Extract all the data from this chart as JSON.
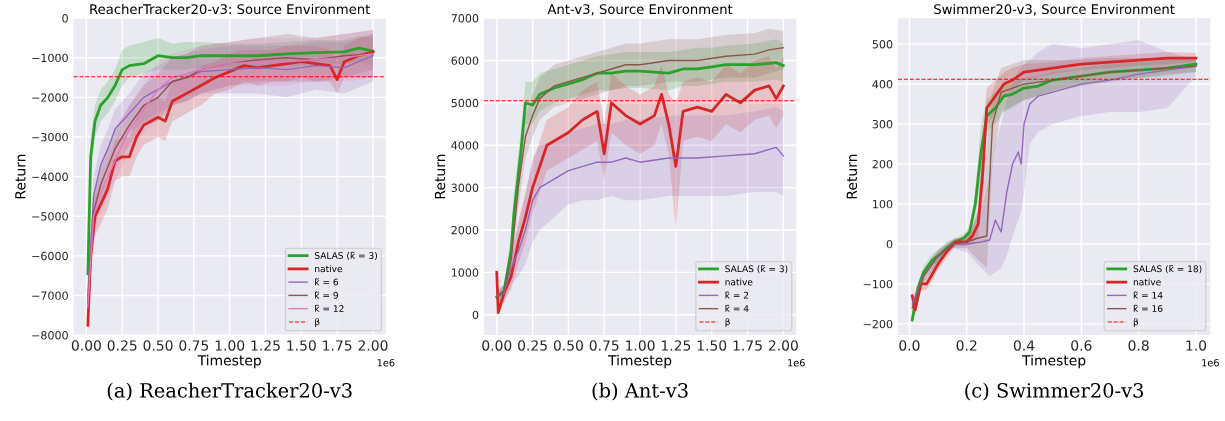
{
  "chart_data": [
    {
      "type": "line",
      "title": "ReacherTracker20-v3: Source Environment",
      "xlabel": "Timestep",
      "ylabel": "Return",
      "annotations": [
        "1e6",
        "(a) ReacherTracker20-v3"
      ],
      "xlim": [
        -0.09,
        2.09
      ],
      "ylim": [
        -8000,
        0
      ],
      "xticks": [
        {
          "value": 0,
          "label": "0.00"
        },
        {
          "value": 0.25,
          "label": "0.25"
        },
        {
          "value": 0.5,
          "label": "0.50"
        },
        {
          "value": 0.75,
          "label": "0.75"
        },
        {
          "value": 1,
          "label": "1.00"
        },
        {
          "value": 1.25,
          "label": "1.25"
        },
        {
          "value": 1.5,
          "label": "1.50"
        },
        {
          "value": 1.75,
          "label": "1.75"
        },
        {
          "value": 2,
          "label": "2.00"
        }
      ],
      "yticks": [
        {
          "value": -8000,
          "label": "−8000"
        },
        {
          "value": -7000,
          "label": "−7000"
        },
        {
          "value": -6000,
          "label": "−6000"
        },
        {
          "value": -5000,
          "label": "−5000"
        },
        {
          "value": -4000,
          "label": "−4000"
        },
        {
          "value": -3000,
          "label": "−3000"
        },
        {
          "value": -2000,
          "label": "−2000"
        },
        {
          "value": -1000,
          "label": "−1000"
        },
        0
      ],
      "grid": true,
      "legend": "bottom right",
      "ref_lines": [
        {
          "axis": "y",
          "value": -1480,
          "label": "β",
          "color": "#ff0000",
          "line_style": "dashed"
        }
      ],
      "series": [
        {
          "name": "SALAS (k̃ = 3)",
          "color": "#2ca02c",
          "x": [
            0.01,
            0.03,
            0.06,
            0.1,
            0.15,
            0.2,
            0.25,
            0.3,
            0.4,
            0.5,
            0.6,
            0.7,
            0.8,
            1.0,
            1.2,
            1.4,
            1.6,
            1.8,
            1.9,
            2.0
          ],
          "values": [
            -6450,
            -3500,
            -2600,
            -2200,
            -2000,
            -1700,
            -1300,
            -1200,
            -1150,
            -950,
            -1000,
            -1000,
            -950,
            -950,
            -950,
            -900,
            -870,
            -850,
            -760,
            -830
          ],
          "lower": [
            -7000,
            -4000,
            -3000,
            -2600,
            -2400,
            -2100,
            -1700,
            -1500,
            -1400,
            -1300,
            -1300,
            -1300,
            -1250,
            -1250,
            -1300,
            -1200,
            -1200,
            -1150,
            -1100,
            -1200
          ],
          "upper": [
            -6000,
            -3000,
            -2200,
            -1800,
            -1600,
            -1300,
            -800,
            -700,
            -600,
            -500,
            -650,
            -600,
            -600,
            -650,
            -650,
            -600,
            -550,
            -550,
            -450,
            -500
          ]
        },
        {
          "name": "native",
          "color": "#d62728",
          "x": [
            0.01,
            0.03,
            0.06,
            0.1,
            0.15,
            0.2,
            0.25,
            0.3,
            0.35,
            0.4,
            0.5,
            0.55,
            0.6,
            0.7,
            0.8,
            0.9,
            1.0,
            1.1,
            1.2,
            1.3,
            1.4,
            1.5,
            1.6,
            1.7,
            1.75,
            1.8,
            1.9,
            2.0
          ],
          "values": [
            -7750,
            -6000,
            -5000,
            -4700,
            -4300,
            -3600,
            -3500,
            -3500,
            -3000,
            -2700,
            -2500,
            -2600,
            -2100,
            -1900,
            -1700,
            -1500,
            -1350,
            -1200,
            -1250,
            -1200,
            -1150,
            -1100,
            -1150,
            -1200,
            -1550,
            -1100,
            -950,
            -850
          ],
          "lower": [
            -8000,
            -6500,
            -5500,
            -5200,
            -4800,
            -4100,
            -4000,
            -4000,
            -3500,
            -3200,
            -3000,
            -3100,
            -2600,
            -2400,
            -2200,
            -1900,
            -1800,
            -1600,
            -1700,
            -1600,
            -1600,
            -1500,
            -1600,
            -1600,
            -1900,
            -1500,
            -1400,
            -1300
          ],
          "upper": [
            -7300,
            -5500,
            -4500,
            -4200,
            -3800,
            -3100,
            -3000,
            -3000,
            -2500,
            -2200,
            -2000,
            -2100,
            -1600,
            -1400,
            -1200,
            -1100,
            -900,
            -800,
            -800,
            -800,
            -700,
            -700,
            -700,
            -800,
            -1100,
            -700,
            -500,
            -400
          ]
        },
        {
          "name": "k̃ = 6",
          "color": "#9467bd",
          "x": [
            0.01,
            0.05,
            0.1,
            0.15,
            0.2,
            0.3,
            0.4,
            0.5,
            0.6,
            0.7,
            0.8,
            1.0,
            1.2,
            1.4,
            1.6,
            1.8,
            2.0
          ],
          "values": [
            -7000,
            -4500,
            -3700,
            -3300,
            -2800,
            -2400,
            -2000,
            -1800,
            -1600,
            -1500,
            -1350,
            -1300,
            -1250,
            -1300,
            -1200,
            -1250,
            -950
          ],
          "lower": [
            -7500,
            -5000,
            -4200,
            -3800,
            -3300,
            -2900,
            -2600,
            -2400,
            -2200,
            -2100,
            -1900,
            -1900,
            -1900,
            -2000,
            -1800,
            -1900,
            -1600
          ],
          "upper": [
            -6500,
            -4000,
            -3200,
            -2800,
            -2300,
            -1900,
            -1400,
            -1200,
            -1000,
            -900,
            -800,
            -700,
            -700,
            -700,
            -600,
            -600,
            -400
          ]
        },
        {
          "name": "k̃ = 9",
          "color": "#8c564b",
          "x": [
            0.01,
            0.05,
            0.1,
            0.2,
            0.3,
            0.4,
            0.5,
            0.6,
            0.7,
            0.8,
            1.0,
            1.2,
            1.4,
            1.6,
            1.8,
            2.0
          ],
          "values": [
            -7200,
            -4900,
            -4200,
            -3300,
            -2700,
            -2200,
            -2000,
            -1600,
            -1500,
            -1300,
            -1150,
            -1050,
            -1000,
            -1050,
            -950,
            -900
          ],
          "lower": [
            -7700,
            -5400,
            -4700,
            -3800,
            -3200,
            -2700,
            -2600,
            -2200,
            -2100,
            -1900,
            -1700,
            -1600,
            -1600,
            -1600,
            -1500,
            -1500
          ],
          "upper": [
            -6700,
            -4400,
            -3700,
            -2800,
            -2200,
            -1700,
            -1400,
            -1000,
            -900,
            -700,
            -600,
            -500,
            -400,
            -500,
            -400,
            -300
          ]
        },
        {
          "name": "k̃ = 12",
          "color": "#e377c2",
          "x": [
            0.01,
            0.05,
            0.1,
            0.2,
            0.3,
            0.4,
            0.5,
            0.6,
            0.7,
            0.8,
            1.0,
            1.2,
            1.4,
            1.6,
            1.8,
            2.0
          ],
          "values": [
            -7300,
            -5000,
            -4400,
            -3600,
            -2800,
            -2300,
            -1800,
            -1500,
            -1400,
            -1300,
            -1150,
            -1100,
            -1100,
            -1050,
            -1000,
            -900
          ],
          "lower": [
            -7800,
            -5500,
            -4900,
            -4100,
            -3400,
            -2900,
            -2500,
            -2200,
            -2000,
            -1900,
            -1700,
            -1700,
            -1700,
            -1600,
            -1600,
            -1500
          ],
          "upper": [
            -6800,
            -4500,
            -3900,
            -3100,
            -2200,
            -1700,
            -1100,
            -900,
            -800,
            -700,
            -600,
            -500,
            -500,
            -500,
            -400,
            -300
          ]
        }
      ]
    },
    {
      "type": "line",
      "title": "Ant-v3, Source Environment",
      "xlabel": "Timestep",
      "ylabel": "Return",
      "annotations": [
        "1e6",
        "(b) Ant-v3"
      ],
      "xlim": [
        -0.09,
        2.09
      ],
      "ylim": [
        -480,
        7000
      ],
      "xticks": [
        {
          "value": 0,
          "label": "0.00"
        },
        {
          "value": 0.25,
          "label": "0.25"
        },
        {
          "value": 0.5,
          "label": "0.50"
        },
        {
          "value": 0.75,
          "label": "0.75"
        },
        {
          "value": 1,
          "label": "1.00"
        },
        {
          "value": 1.25,
          "label": "1.25"
        },
        {
          "value": 1.5,
          "label": "1.50"
        },
        {
          "value": 1.75,
          "label": "1.75"
        },
        {
          "value": 2,
          "label": "2.00"
        }
      ],
      "yticks": [
        0,
        1000,
        2000,
        3000,
        4000,
        5000,
        6000,
        7000
      ],
      "grid": true,
      "legend": "bottom right",
      "ref_lines": [
        {
          "axis": "y",
          "value": 5050,
          "label": "β",
          "color": "#ff0000",
          "line_style": "dashed"
        }
      ],
      "series": [
        {
          "name": "SALAS (k̃ = 3)",
          "color": "#2ca02c",
          "x": [
            0.0,
            0.05,
            0.1,
            0.12,
            0.15,
            0.17,
            0.2,
            0.25,
            0.3,
            0.4,
            0.5,
            0.6,
            0.7,
            0.8,
            0.9,
            1.0,
            1.2,
            1.3,
            1.4,
            1.5,
            1.6,
            1.8,
            1.95,
            2.0
          ],
          "values": [
            420,
            550,
            1500,
            2400,
            3300,
            3900,
            5000,
            4950,
            5200,
            5350,
            5450,
            5550,
            5700,
            5700,
            5750,
            5750,
            5700,
            5800,
            5800,
            5850,
            5900,
            5900,
            5950,
            5880
          ],
          "lower": [
            300,
            400,
            1100,
            1900,
            2800,
            3400,
            4500,
            4500,
            4800,
            5000,
            5100,
            5200,
            5300,
            5300,
            5350,
            5350,
            5300,
            5400,
            5400,
            5450,
            5500,
            5500,
            5550,
            5500
          ],
          "upper": [
            550,
            700,
            1900,
            2900,
            3800,
            4400,
            5500,
            5500,
            5700,
            5800,
            5900,
            6000,
            6100,
            6150,
            6200,
            6200,
            6200,
            6250,
            6300,
            6300,
            6350,
            6400,
            6500,
            6400
          ]
        },
        {
          "name": "native",
          "color": "#d62728",
          "x": [
            0.0,
            0.01,
            0.05,
            0.1,
            0.15,
            0.2,
            0.25,
            0.3,
            0.35,
            0.4,
            0.5,
            0.6,
            0.7,
            0.75,
            0.8,
            0.9,
            1.0,
            1.1,
            1.15,
            1.2,
            1.25,
            1.3,
            1.4,
            1.5,
            1.6,
            1.7,
            1.8,
            1.9,
            1.95,
            2.0
          ],
          "values": [
            1000,
            50,
            500,
            900,
            1700,
            2300,
            3000,
            3500,
            4000,
            4100,
            4300,
            4600,
            4800,
            3800,
            5000,
            4700,
            4500,
            4700,
            5200,
            4500,
            3500,
            4800,
            4900,
            4800,
            5200,
            5000,
            5300,
            5400,
            5100,
            5400
          ],
          "lower": [
            700,
            0,
            300,
            600,
            1200,
            1700,
            2400,
            2900,
            3400,
            3500,
            3700,
            3900,
            4100,
            3200,
            4300,
            4000,
            3800,
            4000,
            4500,
            3800,
            2000,
            4100,
            4200,
            4100,
            4500,
            4300,
            4600,
            4700,
            4400,
            4700
          ],
          "upper": [
            1100,
            200,
            700,
            1200,
            2200,
            2900,
            3600,
            4100,
            4600,
            4700,
            4900,
            5300,
            5500,
            4500,
            5700,
            5400,
            5200,
            5400,
            5900,
            5200,
            5000,
            5500,
            5600,
            5500,
            5900,
            5700,
            6000,
            6100,
            5800,
            6100
          ]
        },
        {
          "name": "k̃ = 2",
          "color": "#9467bd",
          "x": [
            0.0,
            0.05,
            0.1,
            0.15,
            0.2,
            0.25,
            0.3,
            0.4,
            0.5,
            0.6,
            0.7,
            0.8,
            0.9,
            1.0,
            1.2,
            1.4,
            1.6,
            1.8,
            1.95,
            2.0
          ],
          "values": [
            450,
            500,
            1100,
            1500,
            2000,
            2700,
            3000,
            3200,
            3400,
            3500,
            3600,
            3600,
            3700,
            3600,
            3700,
            3700,
            3750,
            3800,
            3950,
            3750
          ],
          "lower": [
            300,
            300,
            700,
            900,
            1200,
            1700,
            2000,
            2300,
            2600,
            2700,
            2700,
            2800,
            2700,
            2700,
            2800,
            2800,
            2800,
            2900,
            2900,
            2800
          ],
          "upper": [
            600,
            700,
            1500,
            2100,
            2800,
            3700,
            4000,
            4100,
            4300,
            4400,
            4500,
            4500,
            4600,
            4600,
            4700,
            4700,
            4700,
            4800,
            4900,
            4800
          ]
        },
        {
          "name": "k̃ = 4",
          "color": "#8c564b",
          "x": [
            0.0,
            0.05,
            0.1,
            0.15,
            0.2,
            0.25,
            0.3,
            0.4,
            0.5,
            0.6,
            0.7,
            0.8,
            0.9,
            1.0,
            1.2,
            1.4,
            1.6,
            1.8,
            1.9,
            2.0
          ],
          "values": [
            400,
            550,
            1300,
            3000,
            4200,
            4700,
            5100,
            5400,
            5500,
            5600,
            5700,
            5800,
            5900,
            5900,
            6000,
            6000,
            6100,
            6150,
            6250,
            6300
          ],
          "lower": [
            300,
            400,
            900,
            2500,
            3700,
            4200,
            4600,
            4900,
            5000,
            5100,
            5200,
            5300,
            5400,
            5400,
            5500,
            5500,
            5600,
            5600,
            5700,
            5800
          ],
          "upper": [
            500,
            700,
            1700,
            3500,
            4700,
            5200,
            5600,
            5900,
            6000,
            6100,
            6200,
            6300,
            6400,
            6400,
            6500,
            6500,
            6600,
            6650,
            6750,
            6700
          ]
        }
      ]
    },
    {
      "type": "line",
      "title": "Swimmer20-v3, Source Environment",
      "xlabel": "Timestep",
      "ylabel": "Return",
      "annotations": [
        "1e6",
        "(c) Swimmer20-v3"
      ],
      "xlim": [
        -0.04,
        1.05
      ],
      "ylim": [
        -228,
        565
      ],
      "xticks": [
        {
          "value": 0,
          "label": "0.0"
        },
        0.2,
        0.4,
        0.6,
        0.8,
        {
          "value": 1,
          "label": "1.0"
        }
      ],
      "yticks": [
        {
          "value": -200,
          "label": "−200"
        },
        {
          "value": -100,
          "label": "−100"
        },
        0,
        100,
        200,
        300,
        400,
        500
      ],
      "grid": true,
      "legend": "bottom right",
      "ref_lines": [
        {
          "axis": "y",
          "value": 412,
          "label": "β",
          "color": "#ff0000",
          "line_style": "dashed"
        }
      ],
      "series": [
        {
          "name": "SALAS (k̃ = 18)",
          "color": "#2ca02c",
          "x": [
            0.01,
            0.03,
            0.05,
            0.08,
            0.1,
            0.13,
            0.16,
            0.19,
            0.21,
            0.23,
            0.25,
            0.27,
            0.3,
            0.33,
            0.36,
            0.4,
            0.45,
            0.5,
            0.6,
            0.7,
            0.8,
            0.9,
            1.0
          ],
          "values": [
            -190,
            -110,
            -70,
            -40,
            -30,
            -10,
            5,
            15,
            30,
            100,
            230,
            320,
            340,
            370,
            375,
            390,
            395,
            410,
            420,
            430,
            435,
            440,
            450
          ],
          "lower": [
            -200,
            -125,
            -85,
            -55,
            -45,
            -25,
            -5,
            5,
            15,
            70,
            150,
            280,
            300,
            330,
            340,
            360,
            370,
            385,
            400,
            410,
            415,
            420,
            430
          ],
          "upper": [
            -175,
            -95,
            -55,
            -25,
            -15,
            5,
            15,
            25,
            45,
            130,
            300,
            360,
            380,
            400,
            405,
            415,
            420,
            430,
            440,
            450,
            455,
            460,
            465
          ]
        },
        {
          "name": "native",
          "color": "#d62728",
          "x": [
            0.01,
            0.02,
            0.04,
            0.06,
            0.1,
            0.13,
            0.16,
            0.2,
            0.22,
            0.24,
            0.255,
            0.27,
            0.3,
            0.33,
            0.36,
            0.4,
            0.5,
            0.6,
            0.7,
            0.8,
            0.9,
            1.0
          ],
          "values": [
            -130,
            -165,
            -100,
            -100,
            -50,
            -20,
            5,
            5,
            20,
            50,
            170,
            340,
            370,
            400,
            410,
            430,
            440,
            450,
            455,
            460,
            465,
            465
          ],
          "lower": [
            -145,
            -180,
            -115,
            -115,
            -65,
            -35,
            -5,
            -5,
            0,
            20,
            100,
            290,
            330,
            370,
            385,
            410,
            425,
            435,
            440,
            445,
            450,
            455
          ],
          "upper": [
            -115,
            -150,
            -85,
            -85,
            -35,
            -5,
            15,
            15,
            40,
            90,
            260,
            390,
            410,
            430,
            440,
            450,
            455,
            465,
            470,
            475,
            480,
            478
          ]
        },
        {
          "name": "k̃ = 14",
          "color": "#9467bd",
          "x": [
            0.01,
            0.05,
            0.1,
            0.15,
            0.2,
            0.25,
            0.28,
            0.3,
            0.32,
            0.34,
            0.36,
            0.38,
            0.39,
            0.4,
            0.42,
            0.45,
            0.5,
            0.6,
            0.7,
            0.8,
            0.9,
            1.0
          ],
          "values": [
            -150,
            -80,
            -30,
            0,
            0,
            5,
            10,
            60,
            30,
            130,
            200,
            230,
            200,
            300,
            350,
            370,
            380,
            400,
            410,
            425,
            435,
            445
          ],
          "lower": [
            -165,
            -95,
            -45,
            -10,
            -20,
            -60,
            -80,
            -70,
            -60,
            -30,
            20,
            60,
            80,
            130,
            250,
            280,
            300,
            320,
            330,
            330,
            340,
            420
          ],
          "upper": [
            -135,
            -65,
            -15,
            10,
            20,
            80,
            170,
            250,
            300,
            360,
            400,
            430,
            440,
            450,
            460,
            480,
            500,
            490,
            500,
            510,
            480,
            460
          ]
        },
        {
          "name": "k̃ = 16",
          "color": "#8c564b",
          "x": [
            0.01,
            0.05,
            0.1,
            0.15,
            0.2,
            0.24,
            0.27,
            0.29,
            0.32,
            0.4,
            0.5,
            0.6,
            0.7,
            0.8,
            0.9,
            1.0
          ],
          "values": [
            -160,
            -80,
            -30,
            0,
            5,
            15,
            20,
            300,
            380,
            400,
            410,
            420,
            430,
            435,
            440,
            445
          ],
          "lower": [
            -175,
            -95,
            -45,
            -10,
            -10,
            -40,
            -60,
            200,
            330,
            360,
            380,
            395,
            405,
            415,
            425,
            430
          ],
          "upper": [
            -145,
            -65,
            -15,
            10,
            20,
            80,
            250,
            380,
            440,
            460,
            460,
            460,
            465,
            465,
            465,
            460
          ]
        }
      ]
    }
  ]
}
